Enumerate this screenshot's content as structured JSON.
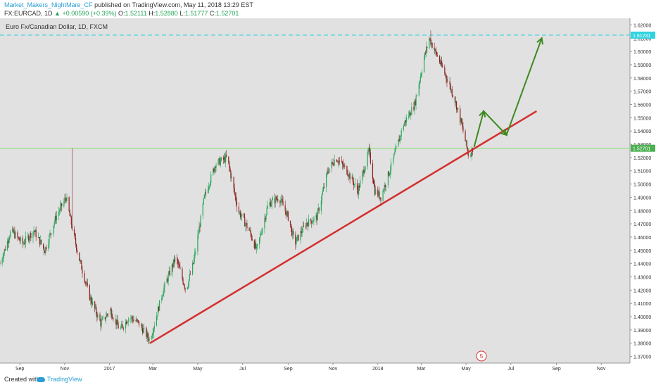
{
  "header": {
    "author": "Market_Makers_NightMare_CF",
    "published_text": "published on TradingView.com, May 11, 2018 13:29 EST",
    "symbol": "FX:EURCAD, 1D",
    "change": "▲ +0.00590 (+0.39%)",
    "o_label": "O:",
    "o_value": "1.52111",
    "h_label": "H:",
    "h_value": "1.52880",
    "l_label": "L:",
    "l_value": "1.51777",
    "c_label": "C:",
    "c_value": "1.52701"
  },
  "chart": {
    "instrument_label": "Euro Fx/Canadian Dollar, 1D, FXCM",
    "resistance_price_tag": "1.61231",
    "current_price_tag": "1.52701",
    "event_badge": "5"
  },
  "footer": {
    "created_with": "Created with",
    "brand": "TradingView"
  },
  "colors": {
    "plot_bg": "#e1e1e1",
    "up_candle": "#26a65b",
    "down_candle": "#8c1f1f",
    "trendline": "#d32f2f",
    "projection_arrow": "#3d8a1f",
    "resistance_line": "#2fd3e0",
    "current_price_line": "#7fdb6a"
  },
  "chart_data": {
    "type": "candlestick",
    "title": "Euro Fx/Canadian Dollar, 1D, FXCM",
    "x_ticks": [
      "Sep",
      "Nov",
      "2017",
      "Mar",
      "May",
      "Jul",
      "Sep",
      "Nov",
      "2018",
      "Mar",
      "May",
      "Jul",
      "Sep",
      "Nov"
    ],
    "y_ticks": [
      1.37,
      1.38,
      1.39,
      1.4,
      1.41,
      1.42,
      1.43,
      1.44,
      1.45,
      1.46,
      1.47,
      1.48,
      1.49,
      1.5,
      1.51,
      1.52,
      1.53,
      1.54,
      1.55,
      1.56,
      1.57,
      1.58,
      1.59,
      1.6,
      1.61,
      1.62
    ],
    "ylim": [
      1.365,
      1.625
    ],
    "y_axis_position": "right",
    "grid": false,
    "price_path": [
      [
        "2016-08-05",
        1.44
      ],
      [
        "2016-08-20",
        1.465
      ],
      [
        "2016-09-05",
        1.455
      ],
      [
        "2016-09-20",
        1.465
      ],
      [
        "2016-10-05",
        1.45
      ],
      [
        "2016-10-20",
        1.475
      ],
      [
        "2016-11-03",
        1.49
      ],
      [
        "2016-11-10",
        1.47
      ],
      [
        "2016-11-20",
        1.445
      ],
      [
        "2016-12-05",
        1.415
      ],
      [
        "2016-12-20",
        1.395
      ],
      [
        "2017-01-02",
        1.405
      ],
      [
        "2017-01-15",
        1.39
      ],
      [
        "2017-01-28",
        1.4
      ],
      [
        "2017-02-10",
        1.395
      ],
      [
        "2017-02-25",
        1.382
      ],
      [
        "2017-03-15",
        1.42
      ],
      [
        "2017-04-01",
        1.445
      ],
      [
        "2017-04-15",
        1.42
      ],
      [
        "2017-04-25",
        1.44
      ],
      [
        "2017-05-10",
        1.49
      ],
      [
        "2017-05-25",
        1.515
      ],
      [
        "2017-06-10",
        1.52
      ],
      [
        "2017-06-25",
        1.48
      ],
      [
        "2017-07-10",
        1.465
      ],
      [
        "2017-07-20",
        1.45
      ],
      [
        "2017-08-05",
        1.485
      ],
      [
        "2017-08-20",
        1.49
      ],
      [
        "2017-09-01",
        1.475
      ],
      [
        "2017-09-10",
        1.455
      ],
      [
        "2017-09-25",
        1.47
      ],
      [
        "2017-10-10",
        1.475
      ],
      [
        "2017-10-25",
        1.51
      ],
      [
        "2017-11-05",
        1.52
      ],
      [
        "2017-11-20",
        1.51
      ],
      [
        "2017-12-05",
        1.495
      ],
      [
        "2017-12-20",
        1.525
      ],
      [
        "2017-12-28",
        1.495
      ],
      [
        "2018-01-05",
        1.49
      ],
      [
        "2018-01-20",
        1.515
      ],
      [
        "2018-02-05",
        1.545
      ],
      [
        "2018-02-20",
        1.56
      ],
      [
        "2018-03-05",
        1.595
      ],
      [
        "2018-03-12",
        1.61
      ],
      [
        "2018-03-20",
        1.6
      ],
      [
        "2018-04-01",
        1.585
      ],
      [
        "2018-04-15",
        1.565
      ],
      [
        "2018-04-25",
        1.545
      ],
      [
        "2018-05-05",
        1.52
      ],
      [
        "2018-05-10",
        1.527
      ]
    ],
    "resistance_level": 1.61231,
    "current_price": 1.52701,
    "trendline": [
      [
        "2017-02-25",
        1.38
      ],
      [
        "2018-08-05",
        1.555
      ]
    ],
    "projection_path": [
      [
        "2018-05-12",
        1.528
      ],
      [
        "2018-05-25",
        1.555
      ],
      [
        "2018-06-25",
        1.537
      ],
      [
        "2018-08-12",
        1.61
      ]
    ]
  }
}
